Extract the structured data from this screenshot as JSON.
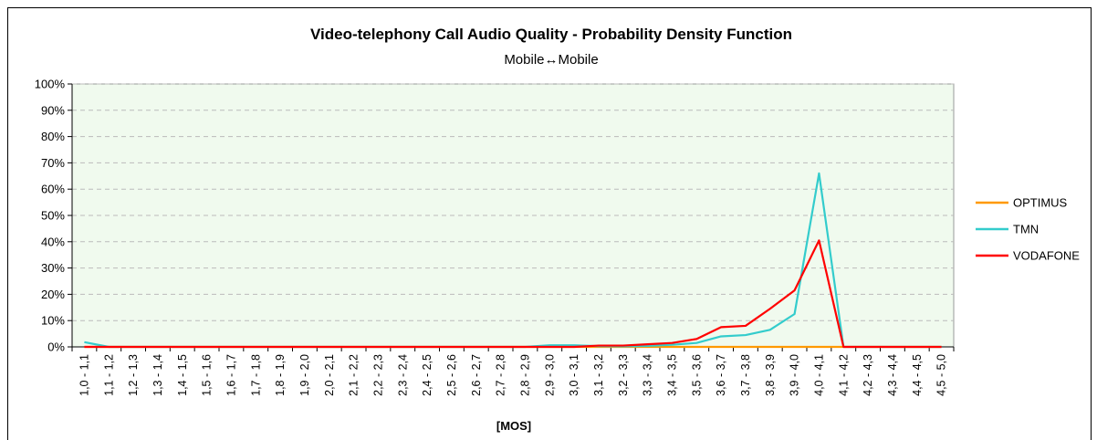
{
  "chart_data": {
    "type": "line",
    "title": "Video-telephony Call Audio Quality - Probability Density Function",
    "subtitle": "Mobile↔Mobile",
    "xlabel": "[MOS]",
    "ylabel": "",
    "ylim": [
      0,
      100
    ],
    "yticks": [
      "0%",
      "10%",
      "20%",
      "30%",
      "40%",
      "50%",
      "60%",
      "70%",
      "80%",
      "90%",
      "100%"
    ],
    "grid": true,
    "legend": "right",
    "categories": [
      "1,0 - 1,1",
      "1,1 - 1,2",
      "1,2 - 1,3",
      "1,3 - 1,4",
      "1,4 - 1,5",
      "1,5 - 1,6",
      "1,6 - 1,7",
      "1,7 - 1,8",
      "1,8 - 1,9",
      "1,9 - 2,0",
      "2,0 - 2,1",
      "2,1 - 2,2",
      "2,2 - 2,3",
      "2,3 - 2,4",
      "2,4 - 2,5",
      "2,5 - 2,6",
      "2,6 - 2,7",
      "2,7 - 2,8",
      "2,8 - 2,9",
      "2,9 - 3,0",
      "3,0 - 3,1",
      "3,1 - 3,2",
      "3,2 - 3,3",
      "3,3 - 3,4",
      "3,4 - 3,5",
      "3,5 - 3,6",
      "3,6 - 3,7",
      "3,7 - 3,8",
      "3,8 - 3,9",
      "3,9 - 4,0",
      "4,0 - 4,1",
      "4,1 - 4,2",
      "4,2 - 4,3",
      "4,3 - 4,4",
      "4,4 - 4,5",
      "4,5 - 5,0"
    ],
    "series": [
      {
        "name": "OPTIMUS",
        "color": "#ff9900",
        "values": [
          0,
          0,
          0,
          0,
          0,
          0,
          0,
          0,
          0,
          0,
          0,
          0,
          0,
          0,
          0,
          0,
          0,
          0,
          0,
          0,
          0,
          0,
          0,
          0,
          0,
          0,
          0,
          0,
          0,
          0,
          0,
          0,
          0,
          0,
          0,
          0
        ]
      },
      {
        "name": "TMN",
        "color": "#33cccc",
        "values": [
          1.8,
          0,
          0,
          0,
          0,
          0,
          0,
          0,
          0,
          0,
          0,
          0,
          0,
          0,
          0,
          0,
          0,
          0,
          0,
          0.6,
          0.6,
          0.3,
          0.2,
          0.4,
          0.8,
          1.5,
          4.0,
          4.5,
          6.5,
          12.5,
          66,
          0,
          0,
          0,
          0,
          0
        ]
      },
      {
        "name": "VODAFONE",
        "color": "#ff0000",
        "values": [
          0,
          0,
          0,
          0,
          0,
          0,
          0,
          0,
          0,
          0,
          0,
          0,
          0,
          0,
          0,
          0,
          0,
          0,
          0,
          0,
          0,
          0.5,
          0.5,
          1.0,
          1.5,
          3.0,
          7.5,
          8.0,
          14.5,
          21.5,
          40.5,
          0,
          0,
          0,
          0,
          0
        ]
      }
    ]
  }
}
